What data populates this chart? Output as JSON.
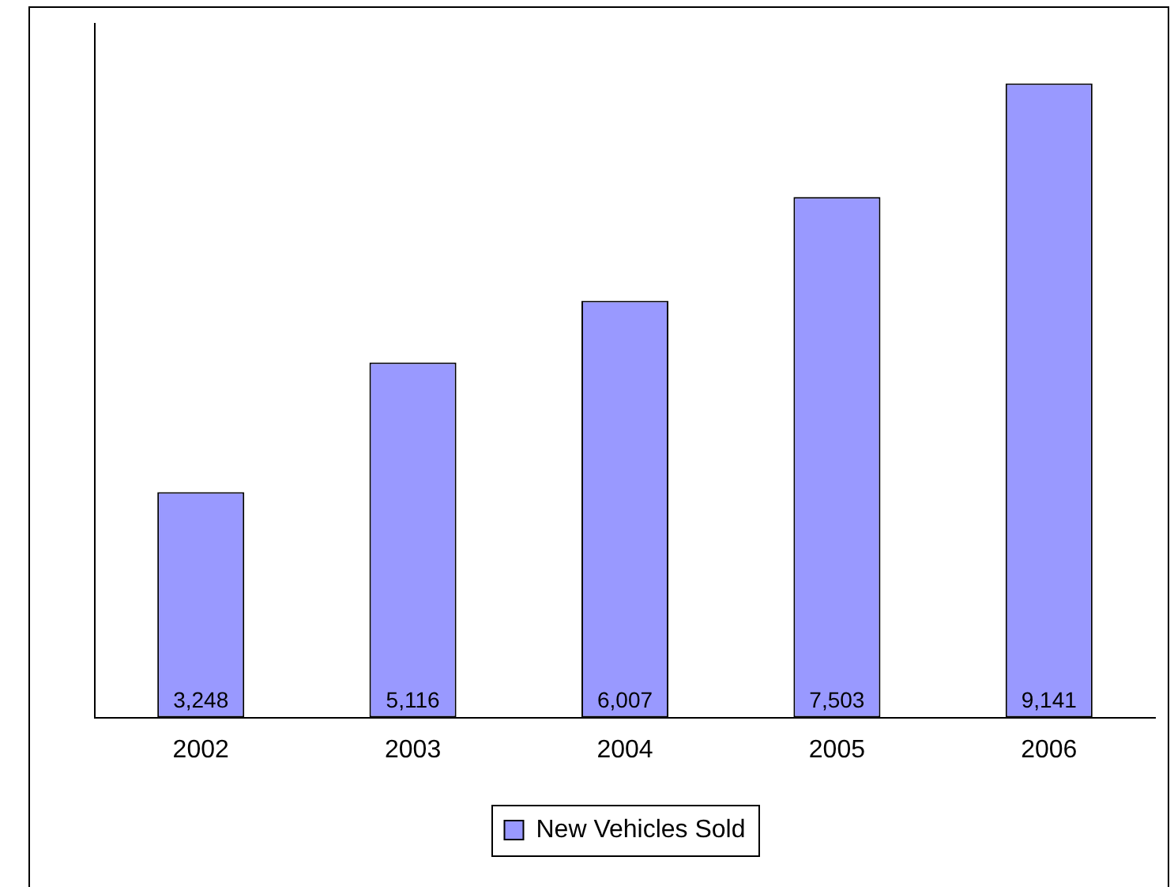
{
  "chart_data": {
    "type": "bar",
    "categories": [
      "2002",
      "2003",
      "2004",
      "2005",
      "2006"
    ],
    "series": [
      {
        "name": "New Vehicles Sold",
        "color": "#9999ff",
        "values": [
          3248,
          5116,
          6007,
          7503,
          9141
        ],
        "value_labels": [
          "3,248",
          "5,116",
          "6,007",
          "7,503",
          "9,141"
        ]
      }
    ],
    "legend": "bottom",
    "grid": false,
    "tick_labels": "x"
  }
}
